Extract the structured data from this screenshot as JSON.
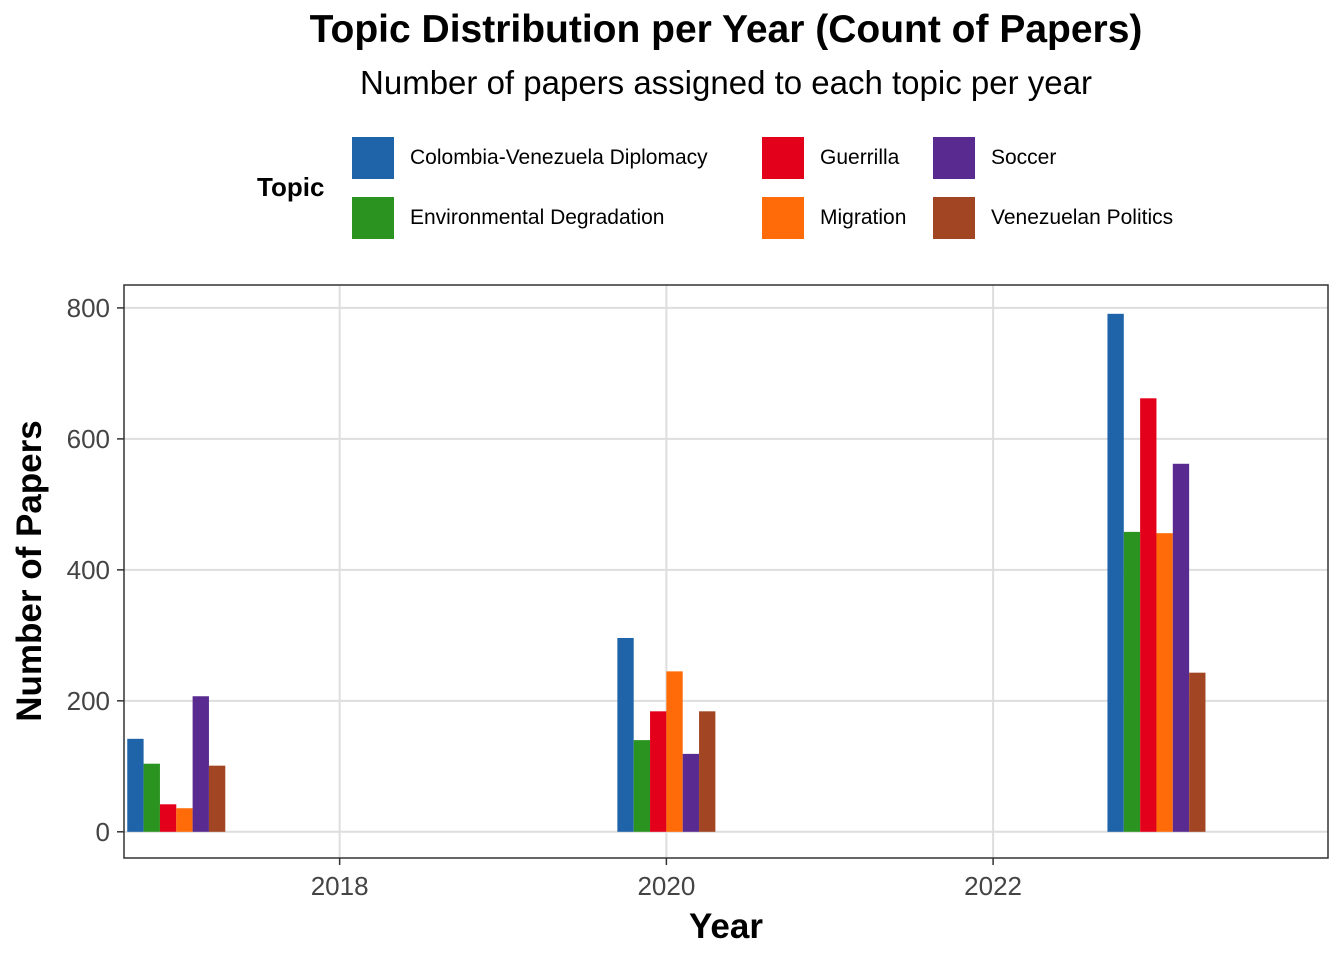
{
  "chart_data": {
    "type": "bar",
    "title": "Topic Distribution per Year (Count of Papers)",
    "subtitle": "Number of papers assigned to each topic per year",
    "xlabel": "Year",
    "ylabel": "Number of Papers",
    "legend_title": "Topic",
    "legend_position": "top",
    "grid": true,
    "x": [
      2017,
      2020,
      2023
    ],
    "xlim": [
      2016.68,
      2024.05
    ],
    "ylim": [
      -40,
      835
    ],
    "xticks": [
      2018,
      2020,
      2022
    ],
    "yticks": [
      0,
      200,
      400,
      600,
      800
    ],
    "series": [
      {
        "name": "Colombia-Venezuela Diplomacy",
        "color": "#1f63a8",
        "values": [
          142,
          296,
          791
        ]
      },
      {
        "name": "Environmental Degradation",
        "color": "#2b9320",
        "values": [
          104,
          140,
          458
        ]
      },
      {
        "name": "Guerrilla",
        "color": "#e3001b",
        "values": [
          42,
          184,
          662
        ]
      },
      {
        "name": "Migration",
        "color": "#ff6b08",
        "values": [
          36,
          245,
          456
        ]
      },
      {
        "name": "Soccer",
        "color": "#592a8f",
        "values": [
          207,
          119,
          562
        ]
      },
      {
        "name": "Venezuelan Politics",
        "color": "#a14523",
        "values": [
          101,
          184,
          243
        ]
      }
    ]
  }
}
